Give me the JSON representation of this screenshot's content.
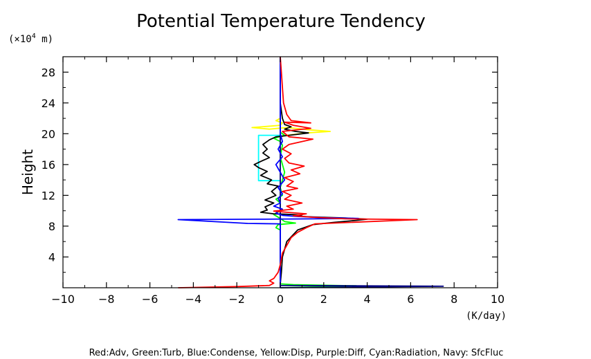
{
  "chart_data": {
    "type": "line",
    "title": "Potential Temperature Tendency",
    "xlabel_unit": "(K/day)",
    "ylabel": "Height",
    "y_unit_prefix": "(×10",
    "y_unit_exp": "4",
    "y_unit_suffix": " m)",
    "xlim": [
      -10,
      10
    ],
    "ylim": [
      0,
      30
    ],
    "xticks": [
      -10,
      -8,
      -6,
      -4,
      -2,
      0,
      2,
      4,
      6,
      8,
      10
    ],
    "xtick_labels": [
      "−10",
      "−8",
      "−6",
      "−4",
      "−2",
      "0",
      "2",
      "4",
      "6",
      "8",
      "10"
    ],
    "yticks": [
      4,
      8,
      12,
      16,
      20,
      24,
      28
    ],
    "ytick_labels": [
      "4",
      "8",
      "12",
      "16",
      "20",
      "24",
      "28"
    ],
    "legend_text": "Red:Adv, Green:Turb, Blue:Condense, Yellow:Disp, Purple:Diff, Cyan:Radiation, Navy: SfcFluc",
    "series": [
      {
        "color": "#00ffff",
        "points": [
          [
            0,
            0
          ],
          [
            0,
            0.1
          ],
          [
            0,
            13.9
          ],
          [
            -1,
            13.9
          ],
          [
            -1,
            19.8
          ],
          [
            0,
            19.8
          ],
          [
            0,
            21
          ],
          [
            0,
            30
          ]
        ]
      },
      {
        "color": "#ffff00",
        "points": [
          [
            0,
            0
          ],
          [
            0,
            19.6
          ],
          [
            0.3,
            19.8
          ],
          [
            1.2,
            20.1
          ],
          [
            2.3,
            20.3
          ],
          [
            1.4,
            20.5
          ],
          [
            0.3,
            20.8
          ],
          [
            -0.5,
            20.6
          ],
          [
            -1.3,
            20.8
          ],
          [
            -0.4,
            21.0
          ],
          [
            0,
            21.1
          ],
          [
            0.1,
            21.4
          ],
          [
            -0.2,
            21.7
          ],
          [
            0,
            22
          ],
          [
            0,
            30
          ]
        ]
      },
      {
        "color": "#00ff00",
        "points": [
          [
            0,
            0
          ],
          [
            3.5,
            0.25
          ],
          [
            0.6,
            0.4
          ],
          [
            0,
            0.5
          ],
          [
            0,
            7.5
          ],
          [
            -0.2,
            7.8
          ],
          [
            -0.1,
            8.2
          ],
          [
            0.7,
            8.4
          ],
          [
            0.2,
            8.6
          ],
          [
            0,
            9
          ],
          [
            -0.3,
            9.5
          ],
          [
            0,
            10
          ],
          [
            0,
            11
          ],
          [
            -0.2,
            11.5
          ],
          [
            0.1,
            12
          ],
          [
            0,
            13
          ],
          [
            0.2,
            15
          ],
          [
            0,
            17
          ],
          [
            0.1,
            18.5
          ],
          [
            0,
            19
          ],
          [
            -0.3,
            19.4
          ],
          [
            0.2,
            19.8
          ],
          [
            0,
            20.2
          ],
          [
            0,
            30
          ]
        ]
      },
      {
        "color": "#000080",
        "points": [
          [
            0,
            0
          ],
          [
            7.5,
            0.2
          ],
          [
            0,
            0.3
          ],
          [
            0,
            30
          ]
        ]
      },
      {
        "color": "#000000",
        "points": [
          [
            0,
            0
          ],
          [
            0,
            0.5
          ],
          [
            0.05,
            2
          ],
          [
            0.1,
            4
          ],
          [
            0.3,
            6
          ],
          [
            0.8,
            7.5
          ],
          [
            1.5,
            8.2
          ],
          [
            2.5,
            8.5
          ],
          [
            3.5,
            8.75
          ],
          [
            4,
            8.9
          ],
          [
            3,
            9.05
          ],
          [
            1.5,
            9.2
          ],
          [
            0.7,
            9.3
          ],
          [
            1,
            9.45
          ],
          [
            0.2,
            9.55
          ],
          [
            -0.3,
            9.6
          ],
          [
            -0.9,
            9.8
          ],
          [
            -0.6,
            10.1
          ],
          [
            -0.7,
            10.5
          ],
          [
            -0.3,
            11
          ],
          [
            -0.7,
            11.4
          ],
          [
            -0.2,
            12
          ],
          [
            -0.4,
            12.5
          ],
          [
            -0.1,
            13.2
          ],
          [
            -0.6,
            13.5
          ],
          [
            -0.4,
            14
          ],
          [
            -0.9,
            14.6
          ],
          [
            -0.6,
            15.1
          ],
          [
            -1,
            15.6
          ],
          [
            -1.2,
            16
          ],
          [
            -0.9,
            16.4
          ],
          [
            -0.5,
            16.9
          ],
          [
            -0.8,
            17.5
          ],
          [
            -0.6,
            18
          ],
          [
            -0.8,
            18.6
          ],
          [
            -0.5,
            19.2
          ],
          [
            -0.2,
            19.6
          ],
          [
            0.4,
            19.8
          ],
          [
            1.3,
            20.1
          ],
          [
            0.7,
            20.3
          ],
          [
            0.2,
            20.6
          ],
          [
            0.5,
            20.9
          ],
          [
            0.2,
            21.2
          ],
          [
            0.1,
            22
          ],
          [
            0,
            24
          ],
          [
            0,
            30
          ]
        ]
      },
      {
        "color": "#0000ff",
        "points": [
          [
            0,
            0
          ],
          [
            0,
            8.3
          ],
          [
            -1.5,
            8.35
          ],
          [
            -4.7,
            8.85
          ],
          [
            -1,
            8.9
          ],
          [
            1.5,
            8.95
          ],
          [
            3.6,
            9.0
          ],
          [
            2,
            9.1
          ],
          [
            0.8,
            9.25
          ],
          [
            0.1,
            9.4
          ],
          [
            -0.2,
            9.7
          ],
          [
            0.1,
            10.2
          ],
          [
            -0.3,
            10.6
          ],
          [
            0,
            11
          ],
          [
            -0.1,
            11.6
          ],
          [
            0.1,
            12.2
          ],
          [
            -0.1,
            13
          ],
          [
            0.2,
            14
          ],
          [
            0,
            15
          ],
          [
            -0.2,
            16
          ],
          [
            0.1,
            17
          ],
          [
            -0.1,
            18
          ],
          [
            0.1,
            19
          ],
          [
            0,
            20
          ],
          [
            0,
            30
          ]
        ]
      },
      {
        "color": "#ff0000",
        "points": [
          [
            -4.7,
            0
          ],
          [
            -2,
            0.15
          ],
          [
            -0.5,
            0.3
          ],
          [
            -0.3,
            0.6
          ],
          [
            -0.5,
            0.9
          ],
          [
            -0.3,
            1.2
          ],
          [
            -0.1,
            2
          ],
          [
            0,
            3
          ],
          [
            0.1,
            4.5
          ],
          [
            0.3,
            5.5
          ],
          [
            0.5,
            6.5
          ],
          [
            0.8,
            7.2
          ],
          [
            1.2,
            7.8
          ],
          [
            1.6,
            8.3
          ],
          [
            6.3,
            8.85
          ],
          [
            3,
            8.95
          ],
          [
            1.5,
            9.15
          ],
          [
            0.6,
            9.35
          ],
          [
            1.2,
            9.6
          ],
          [
            0.3,
            9.8
          ],
          [
            -0.3,
            9.95
          ],
          [
            0.6,
            10.2
          ],
          [
            0.3,
            10.6
          ],
          [
            1,
            11
          ],
          [
            0.2,
            11.5
          ],
          [
            0.5,
            12
          ],
          [
            0.1,
            12.5
          ],
          [
            0.8,
            12.9
          ],
          [
            0.3,
            13.2
          ],
          [
            0.6,
            13.8
          ],
          [
            0.2,
            14.3
          ],
          [
            0.9,
            14.8
          ],
          [
            0.5,
            15.3
          ],
          [
            1.1,
            15.8
          ],
          [
            0.4,
            16.2
          ],
          [
            0.2,
            16.8
          ],
          [
            0.5,
            17.4
          ],
          [
            0.1,
            18
          ],
          [
            0.4,
            18.6
          ],
          [
            1.5,
            19.3
          ],
          [
            0.4,
            19.6
          ],
          [
            0.1,
            20.3
          ],
          [
            1.4,
            20.7
          ],
          [
            0.6,
            21.1
          ],
          [
            0.2,
            21.5
          ],
          [
            1.4,
            21.4
          ],
          [
            0.5,
            21.7
          ],
          [
            0.3,
            22.5
          ],
          [
            0.15,
            24
          ],
          [
            0.1,
            26
          ],
          [
            0.05,
            28
          ],
          [
            0,
            30
          ]
        ]
      }
    ]
  }
}
